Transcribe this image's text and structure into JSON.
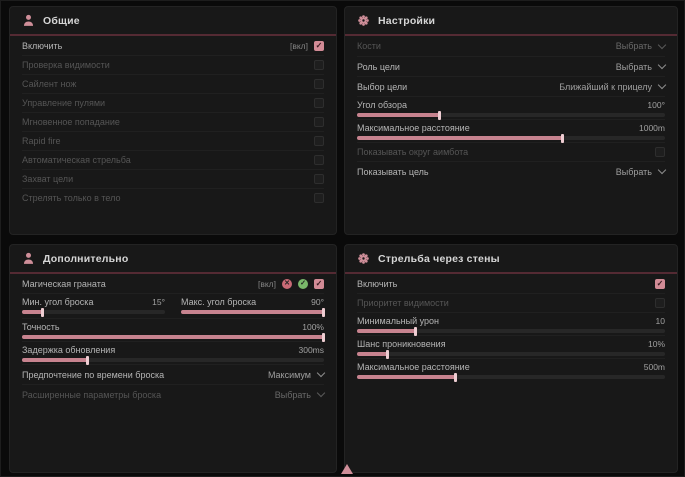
{
  "theme": {
    "page_bg": "#0a0a0a",
    "panel_bg": "#181818",
    "accent_pink": "#cf8e99",
    "slider_fill": "#c7838f",
    "header_divider": "#542a33",
    "checkbox_on": "#d28b96",
    "label_enabled": "#b5b5b5",
    "label_disabled": "#555555"
  },
  "panels": [
    {
      "title": "Общие",
      "icon": "person-icon",
      "rows": [
        {
          "type": "toggle",
          "name": "enable",
          "label": "Включить",
          "suffix": "[вкл]",
          "checked": true,
          "enabled": true
        },
        {
          "type": "toggle",
          "name": "visibility-check",
          "label": "Проверка видимости",
          "checked": false,
          "enabled": false
        },
        {
          "type": "toggle",
          "name": "silent-knife",
          "label": "Сайлент нож",
          "checked": false,
          "enabled": false
        },
        {
          "type": "toggle",
          "name": "bullet-control",
          "label": "Управление пулями",
          "checked": false,
          "enabled": false
        },
        {
          "type": "toggle",
          "name": "instant-hit",
          "label": "Мгновенное попадание",
          "checked": false,
          "enabled": false
        },
        {
          "type": "toggle",
          "name": "rapid-fire",
          "label": "Rapid fire",
          "checked": false,
          "enabled": false
        },
        {
          "type": "toggle",
          "name": "auto-fire",
          "label": "Автоматическая стрельба",
          "checked": false,
          "enabled": false
        },
        {
          "type": "toggle",
          "name": "target-lock",
          "label": "Захват цели",
          "checked": false,
          "enabled": false
        },
        {
          "type": "toggle",
          "name": "body-only",
          "label": "Стрелять только в тело",
          "checked": false,
          "enabled": false
        }
      ]
    },
    {
      "title": "Настройки",
      "icon": "gear-icon",
      "rows": [
        {
          "type": "dropdown",
          "name": "bones",
          "label": "Кости",
          "value": "Выбрать",
          "enabled": false
        },
        {
          "type": "dropdown",
          "name": "target-role",
          "label": "Роль цели",
          "value": "Выбрать",
          "enabled": true
        },
        {
          "type": "dropdown",
          "name": "target-selection",
          "label": "Выбор цели",
          "value": "Ближайший к прицелу",
          "enabled": true
        },
        {
          "type": "slider",
          "name": "fov",
          "label": "Угол обзора",
          "value": "100°",
          "fill": 27
        },
        {
          "type": "slider",
          "name": "max-distance",
          "label": "Максимальное расстояние",
          "value": "1000m",
          "fill": 67
        },
        {
          "type": "toggle",
          "name": "show-aimbot-circle",
          "label": "Показывать округ аимбота",
          "checked": false,
          "enabled": false
        },
        {
          "type": "dropdown",
          "name": "show-target",
          "label": "Показывать цель",
          "value": "Выбрать",
          "enabled": true
        }
      ]
    },
    {
      "title": "Дополнительно",
      "icon": "person-icon",
      "rows": [
        {
          "type": "toggle",
          "name": "magic-grenade",
          "label": "Магическая граната",
          "suffix": "[вкл]",
          "checked": true,
          "enabled": true,
          "icons": [
            {
              "name": "state-icon-red",
              "color": "#c96a76",
              "glyph": "✕"
            },
            {
              "name": "state-icon-green",
              "color": "#79b86a",
              "glyph": "✓"
            }
          ]
        },
        {
          "type": "slider-pair",
          "name": "throw-angles",
          "left": {
            "name": "min-throw-angle",
            "label": "Мин. угол броска",
            "value": "15°",
            "fill": 15
          },
          "right": {
            "name": "max-throw-angle",
            "label": "Макс. угол броска",
            "value": "90°",
            "fill": 100
          }
        },
        {
          "type": "slider",
          "name": "accuracy",
          "label": "Точность",
          "value": "100%",
          "fill": 100
        },
        {
          "type": "slider",
          "name": "update-delay",
          "label": "Задержка обновления",
          "value": "300ms",
          "fill": 22
        },
        {
          "type": "dropdown",
          "name": "throw-time-preference",
          "label": "Предпочтение по времени броска",
          "value": "Максимум",
          "enabled": true
        },
        {
          "type": "dropdown",
          "name": "advanced-throw-params",
          "label": "Расширенные параметры броска",
          "value": "Выбрать",
          "enabled": false
        }
      ]
    },
    {
      "title": "Стрельба через стены",
      "icon": "gear-icon",
      "rows": [
        {
          "type": "toggle",
          "name": "enable",
          "label": "Включить",
          "checked": true,
          "enabled": true
        },
        {
          "type": "toggle",
          "name": "visibility-priority",
          "label": "Приоритет видимости",
          "checked": false,
          "enabled": false
        },
        {
          "type": "slider",
          "name": "min-damage",
          "label": "Минимальный урон",
          "value": "10",
          "fill": 19
        },
        {
          "type": "slider",
          "name": "penetration-chance",
          "label": "Шанс проникновения",
          "value": "10%",
          "fill": 10
        },
        {
          "type": "slider",
          "name": "max-distance",
          "label": "Максимальное расстояние",
          "value": "500m",
          "fill": 32
        }
      ]
    }
  ]
}
